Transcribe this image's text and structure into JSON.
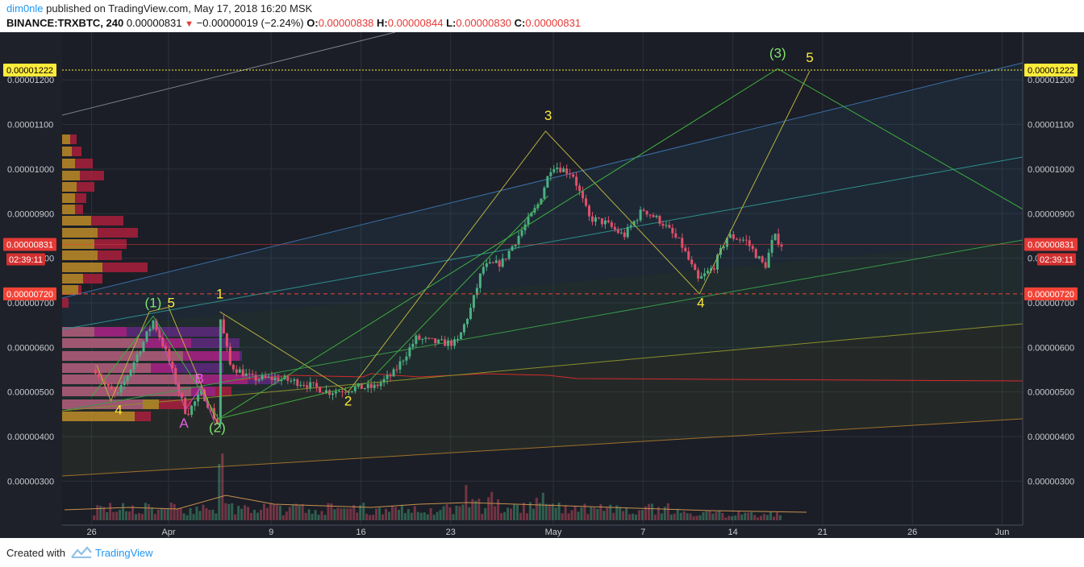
{
  "header": {
    "author": "dim0nle",
    "published_text": "published on TradingView.com, May 17, 2018 16:20 MSK",
    "symbol": "BINANCE:TRXBTC, 240",
    "last": "0.00000831",
    "change": "−0.00000019 (−2.24%)",
    "o_label": "O:",
    "o_value": "0.00000838",
    "h_label": "H:",
    "h_value": "0.00000844",
    "l_label": "L:",
    "l_value": "0.00000830",
    "c_label": "C:",
    "c_value": "0.00000831"
  },
  "footer": {
    "created_text": "Created with",
    "brand": "TradingView"
  },
  "chart_data": {
    "type": "candlestick",
    "instrument": "BINANCE:TRXBTC",
    "interval": "240",
    "x_tick_labels": [
      "26",
      "Apr",
      "9",
      "16",
      "23",
      "May",
      "7",
      "14",
      "21",
      "26",
      "Jun"
    ],
    "y_tick_labels": [
      "0.00000300",
      "0.00000400",
      "0.00000500",
      "0.00000600",
      "0.00000700",
      "0.00000800",
      "0.00000900",
      "0.00001000",
      "0.00001100",
      "0.00001200"
    ],
    "ylim": [
      2.2e-06,
      1.31e-05
    ],
    "price_lines": [
      {
        "label": "0.00001222",
        "value": 1.222e-05,
        "color": "#ffeb3b",
        "style": "dotted"
      },
      {
        "label": "0.00000831",
        "value": 8.31e-06,
        "color": "#e53935",
        "style": "solid",
        "countdown": "02:39:11"
      },
      {
        "label": "0.00000720",
        "value": 7.2e-06,
        "color": "#f44336",
        "style": "dashed"
      }
    ],
    "close_path": [
      {
        "day": -5.7,
        "close": 5.5e-06
      },
      {
        "day": -4.8,
        "close": 5.1e-06
      },
      {
        "day": -4.0,
        "close": 4.9e-06
      },
      {
        "day": -3.0,
        "close": 5.5e-06
      },
      {
        "day": -2.0,
        "close": 6.1e-06
      },
      {
        "day": -1.2,
        "close": 6.6e-06
      },
      {
        "day": -0.2,
        "close": 5.9e-06
      },
      {
        "day": 0.7,
        "close": 5.1e-06
      },
      {
        "day": 1.4,
        "close": 4.5e-06
      },
      {
        "day": 2.6,
        "close": 5e-06
      },
      {
        "day": 3.8,
        "close": 4.3e-06
      },
      {
        "day": 4.0,
        "close": 6.7e-06
      },
      {
        "day": 4.8,
        "close": 5.6e-06
      },
      {
        "day": 6.5,
        "close": 5.3e-06
      },
      {
        "day": 8.5,
        "close": 5.3e-06
      },
      {
        "day": 10.5,
        "close": 5.2e-06
      },
      {
        "day": 12.5,
        "close": 5e-06
      },
      {
        "day": 14.8,
        "close": 5.1e-06
      },
      {
        "day": 16.0,
        "close": 5.1e-06
      },
      {
        "day": 17.5,
        "close": 5.4e-06
      },
      {
        "day": 19.3,
        "close": 6.2e-06
      },
      {
        "day": 21.0,
        "close": 6.1e-06
      },
      {
        "day": 22.5,
        "close": 6.1e-06
      },
      {
        "day": 23.6,
        "close": 6.9e-06
      },
      {
        "day": 24.5,
        "close": 7.8e-06
      },
      {
        "day": 26.0,
        "close": 7.9e-06
      },
      {
        "day": 27.5,
        "close": 8.6e-06
      },
      {
        "day": 28.8,
        "close": 9.2e-06
      },
      {
        "day": 29.9,
        "close": 1.01e-05
      },
      {
        "day": 31.5,
        "close": 9.9e-06
      },
      {
        "day": 32.8,
        "close": 8.9e-06
      },
      {
        "day": 34.0,
        "close": 8.8e-06
      },
      {
        "day": 35.5,
        "close": 8.5e-06
      },
      {
        "day": 37.0,
        "close": 9.1e-06
      },
      {
        "day": 38.5,
        "close": 8.8e-06
      },
      {
        "day": 40.0,
        "close": 8.3e-06
      },
      {
        "day": 41.3,
        "close": 7.5e-06
      },
      {
        "day": 42.5,
        "close": 7.8e-06
      },
      {
        "day": 43.6,
        "close": 8.5e-06
      },
      {
        "day": 45.0,
        "close": 8.4e-06
      },
      {
        "day": 46.5,
        "close": 7.8e-06
      },
      {
        "day": 47.2,
        "close": 8.5e-06
      },
      {
        "day": 47.8,
        "close": 8.3e-06
      }
    ],
    "wave_labels": [
      {
        "text": "(1)",
        "day": -1.2,
        "price": 6.9e-06,
        "color": "#7ee36f"
      },
      {
        "text": "5",
        "day": 0.2,
        "price": 6.9e-06,
        "color": "#ffeb3b"
      },
      {
        "text": "1",
        "day": 4.0,
        "price": 7.1e-06,
        "color": "#ffeb3b"
      },
      {
        "text": "4",
        "day": -3.9,
        "price": 4.5e-06,
        "color": "#ffeb3b"
      },
      {
        "text": "A",
        "day": 1.2,
        "price": 4.2e-06,
        "color": "#e060e0"
      },
      {
        "text": "B",
        "day": 2.4,
        "price": 5.2e-06,
        "color": "#e060e0"
      },
      {
        "text": "(2)",
        "day": 3.8,
        "price": 4.1e-06,
        "color": "#7ee36f"
      },
      {
        "text": "2",
        "day": 14.0,
        "price": 4.7e-06,
        "color": "#ffeb3b"
      },
      {
        "text": "3",
        "day": 29.6,
        "price": 1.11e-05,
        "color": "#ffeb3b"
      },
      {
        "text": "4",
        "day": 41.5,
        "price": 6.9e-06,
        "color": "#ffeb3b"
      },
      {
        "text": "(3)",
        "day": 47.5,
        "price": 1.25e-05,
        "color": "#7ee36f"
      },
      {
        "text": "5",
        "day": 50.0,
        "price": 1.24e-05,
        "color": "#ffeb3b"
      }
    ],
    "colors": {
      "up": "#4caf82",
      "down": "#e0506a",
      "background": "#1b1e26"
    }
  }
}
